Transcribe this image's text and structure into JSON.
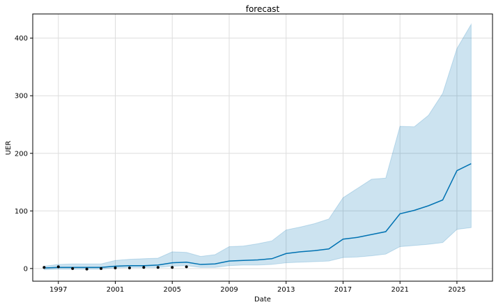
{
  "chart_data": {
    "type": "line",
    "title": "forecast",
    "xlabel": "Date",
    "ylabel": "UER",
    "xlim": [
      1995.2,
      2027.5
    ],
    "ylim": [
      -22,
      442
    ],
    "x_ticks": [
      1997,
      2001,
      2005,
      2009,
      2013,
      2017,
      2021,
      2025
    ],
    "y_ticks": [
      0,
      100,
      200,
      300,
      400
    ],
    "grid": true,
    "colors": {
      "forecast_line": "#0072B2",
      "interval_fill": "#0072B2",
      "observed_points": "#000000",
      "grid": "#dddddd"
    },
    "series": [
      {
        "name": "",
        "role": "observed",
        "x": [
          1996,
          1997,
          1998,
          1999,
          2000,
          2001,
          2002,
          2003,
          2004,
          2005,
          2006
        ],
        "y": [
          2,
          3,
          0,
          -1,
          0,
          1,
          1,
          2,
          2,
          2,
          3
        ]
      },
      {
        "name": "",
        "role": "forecast",
        "x": [
          1996,
          1997,
          1998,
          1999,
          2000,
          2001,
          2002,
          2003,
          2004,
          2005,
          2006,
          2007,
          2008,
          2009,
          2010,
          2011,
          2012,
          2013,
          2014,
          2015,
          2016,
          2017,
          2018,
          2019,
          2020,
          2021,
          2022,
          2023,
          2024,
          2025,
          2026
        ],
        "y": [
          1,
          2,
          2,
          2,
          2,
          4,
          5,
          5,
          6,
          10,
          11,
          7,
          8,
          13,
          14,
          15,
          17,
          26,
          29,
          31,
          34,
          51,
          54,
          59,
          64,
          95,
          101,
          109,
          119,
          170,
          182
        ],
        "lower": [
          -2,
          -1,
          -1,
          -1,
          -1,
          1,
          2,
          2,
          2,
          4,
          5,
          2,
          2,
          5,
          6,
          6,
          7,
          10,
          11,
          12,
          13,
          19,
          20,
          22,
          25,
          38,
          40,
          42,
          45,
          68,
          71
        ],
        "upper": [
          4,
          7,
          8,
          8,
          8,
          14,
          16,
          17,
          18,
          29,
          28,
          21,
          24,
          38,
          39,
          43,
          48,
          67,
          72,
          78,
          86,
          123,
          139,
          155,
          157,
          247,
          246,
          266,
          304,
          382,
          424
        ]
      }
    ]
  }
}
